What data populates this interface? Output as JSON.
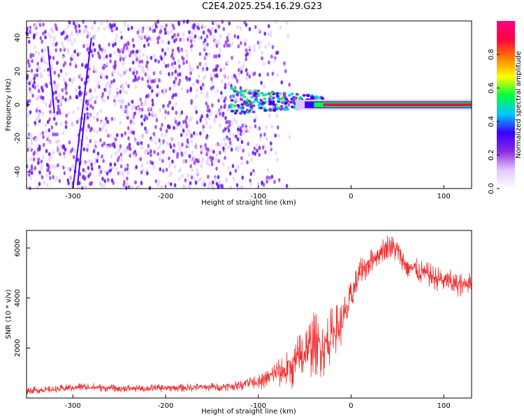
{
  "chart_data": [
    {
      "type": "heatmap",
      "title": "C2E4.2025.254.16.29.G23",
      "xlabel": "Height of straight line (km)",
      "ylabel": "Frequency (Hz)",
      "xlim": [
        -350,
        130
      ],
      "ylim": [
        -50,
        50
      ],
      "x_ticks": [
        -300,
        -200,
        -100,
        0,
        100
      ],
      "x_tick_labels": [
        "-300",
        "-200",
        "-100",
        "0",
        "100"
      ],
      "y_ticks": [
        -40,
        -20,
        0,
        20,
        40
      ],
      "y_tick_labels": [
        "-40",
        "-20",
        "0",
        "20",
        "40"
      ],
      "colorbar": {
        "label": "Normalized spectral amplitude",
        "range": [
          0,
          1
        ],
        "ticks": [
          0,
          0.2,
          0.4,
          0.6,
          0.8
        ],
        "tick_labels": [
          "0.0",
          "0.2",
          "0.4",
          "0.6",
          "0.8"
        ],
        "colors": [
          "#ffffff",
          "#e0c8ff",
          "#8a2be2",
          "#3a00ff",
          "#00c8ff",
          "#00ff40",
          "#ffff00",
          "#ff8000",
          "#ff0040",
          "#ff0080"
        ]
      },
      "regions": [
        {
          "name": "noise",
          "x_range": [
            -350,
            -80
          ],
          "f_range": [
            -50,
            50
          ],
          "amplitude": 0.08
        },
        {
          "name": "transition",
          "x_range": [
            -130,
            -30
          ],
          "f_range": [
            -10,
            10
          ],
          "amplitude": 0.35
        },
        {
          "name": "signal-line",
          "x_range": [
            -30,
            130
          ],
          "f_center": 0,
          "amplitude": 0.95
        }
      ]
    },
    {
      "type": "line",
      "title": "",
      "xlabel": "Height of straight line (km)",
      "ylabel": "SNR (10 * v/v)",
      "xlim": [
        -350,
        130
      ],
      "ylim": [
        0,
        6700
      ],
      "x_ticks": [
        -300,
        -200,
        -100,
        0,
        100
      ],
      "x_tick_labels": [
        "-300",
        "-200",
        "-100",
        "0",
        "100"
      ],
      "y_ticks": [
        2000,
        4000,
        6000
      ],
      "y_tick_labels": [
        "2000",
        "4000",
        "6000"
      ],
      "color": "#f03030",
      "series": [
        {
          "name": "SNR",
          "x": [
            -350,
            -320,
            -290,
            -260,
            -230,
            -200,
            -170,
            -140,
            -120,
            -110,
            -100,
            -90,
            -80,
            -70,
            -60,
            -50,
            -40,
            -30,
            -20,
            -10,
            0,
            10,
            20,
            30,
            40,
            50,
            60,
            70,
            80,
            90,
            100,
            110,
            120,
            130
          ],
          "values": [
            300,
            350,
            450,
            400,
            380,
            400,
            420,
            450,
            500,
            700,
            600,
            800,
            1000,
            1100,
            1400,
            1800,
            2200,
            2000,
            2600,
            3000,
            4000,
            5000,
            5400,
            5800,
            6100,
            5900,
            5300,
            5100,
            5000,
            4800,
            4700,
            4600,
            4500,
            4700
          ],
          "spread": [
            150,
            150,
            180,
            160,
            160,
            160,
            170,
            180,
            200,
            300,
            300,
            400,
            600,
            800,
            1000,
            1200,
            1300,
            1200,
            1100,
            900,
            700,
            600,
            500,
            500,
            500,
            500,
            500,
            500,
            500,
            500,
            500,
            500,
            500,
            400
          ]
        }
      ]
    }
  ]
}
